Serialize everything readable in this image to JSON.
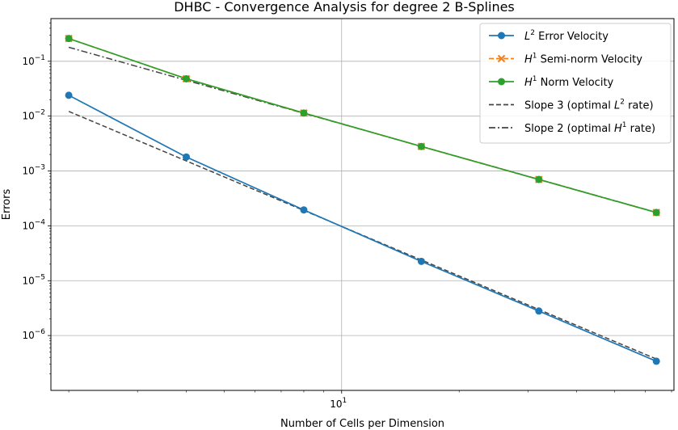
{
  "chart_data": {
    "type": "line",
    "title": "DHBC - Convergence Analysis for degree 2 B-Splines",
    "xlabel": "Number of Cells per Dimension",
    "ylabel": "Errors",
    "xscale": "log",
    "yscale": "log",
    "xlim": [
      1.8,
      71
    ],
    "ylim": [
      1e-07,
      0.6
    ],
    "x_ticks": [
      {
        "value": 10,
        "base": "10",
        "exp": "1"
      }
    ],
    "y_ticks": [
      {
        "value": 0.1,
        "base": "10",
        "exp": "−1"
      },
      {
        "value": 0.01,
        "base": "10",
        "exp": "−2"
      },
      {
        "value": 0.001,
        "base": "10",
        "exp": "−3"
      },
      {
        "value": 0.0001,
        "base": "10",
        "exp": "−4"
      },
      {
        "value": 1e-05,
        "base": "10",
        "exp": "−5"
      },
      {
        "value": 1e-06,
        "base": "10",
        "exp": "−6"
      }
    ],
    "grid": "major",
    "legend_position": "top-right",
    "series": [
      {
        "key": "l2",
        "color": "#1f77b4",
        "style": "solid",
        "marker": "circle",
        "legend": {
          "pre": "L",
          "sup": "2",
          "post": " Error Velocity"
        },
        "x": [
          2,
          4,
          8,
          16,
          32,
          64
        ],
        "y": [
          0.024,
          0.0018,
          0.000195,
          2.25e-05,
          2.8e-06,
          3.4e-07
        ]
      },
      {
        "key": "h1semi",
        "color": "#ff7f0e",
        "style": "dashed",
        "marker": "x",
        "legend": {
          "pre": "H",
          "sup": "1",
          "post": " Semi-norm Velocity"
        },
        "x": [
          2,
          4,
          8,
          16,
          32,
          64
        ],
        "y": [
          0.26,
          0.048,
          0.0114,
          0.0028,
          0.0007,
          0.000175
        ]
      },
      {
        "key": "h1norm",
        "color": "#2ca02c",
        "style": "solid",
        "marker": "circle",
        "legend": {
          "pre": "H",
          "sup": "1",
          "post": " Norm Velocity"
        },
        "x": [
          2,
          4,
          8,
          16,
          32,
          64
        ],
        "y": [
          0.26,
          0.048,
          0.0114,
          0.0028,
          0.0007,
          0.000175
        ]
      },
      {
        "key": "slope3",
        "color": "#444444",
        "style": "dashed",
        "marker": "none",
        "legend": {
          "pre": "Slope 3 (optimal ",
          "italic": "L",
          "sup": "2",
          "post": " rate)"
        },
        "x": [
          2,
          64
        ],
        "y": [
          0.0122,
          3.73e-07
        ]
      },
      {
        "key": "slope2",
        "color": "#444444",
        "style": "dashdot",
        "marker": "none",
        "legend": {
          "pre": "Slope 2 (optimal ",
          "italic": "H",
          "sup": "1",
          "post": " rate)"
        },
        "x": [
          2,
          64
        ],
        "y": [
          0.18,
          0.000176
        ]
      }
    ]
  }
}
